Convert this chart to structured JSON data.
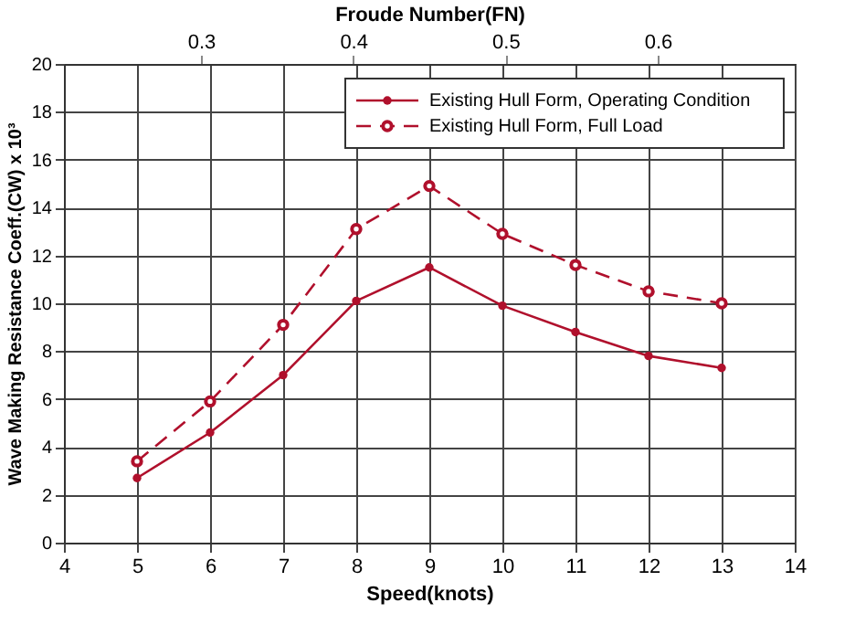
{
  "chart_data": {
    "type": "line",
    "xlabel": "Speed(knots)",
    "ylabel": "Wave Making Resistance Coeff.(CW) x 10³",
    "x2label": "Froude Number(FN)",
    "x": [
      5,
      6,
      7,
      8,
      9,
      10,
      11,
      12,
      13
    ],
    "series": [
      {
        "name": "Existing Hull Form, Operating Condition",
        "color": "#b0102c",
        "values": [
          2.7,
          4.6,
          7.0,
          10.1,
          11.5,
          9.9,
          8.8,
          7.8,
          7.3
        ],
        "marker": "circle",
        "line_style": "solid"
      },
      {
        "name": "Existing Hull Form, Full Load",
        "color": "#b0102c",
        "values": [
          3.4,
          5.9,
          9.1,
          13.1,
          14.9,
          12.9,
          11.6,
          10.5,
          10.0
        ],
        "marker": "circle",
        "line_style": "dashed"
      }
    ],
    "xlim": [
      4,
      14
    ],
    "xticks": [
      4,
      5,
      6,
      7,
      8,
      9,
      10,
      11,
      12,
      13,
      14
    ],
    "ylim": [
      0,
      20
    ],
    "yticks": [
      0,
      2,
      4,
      6,
      8,
      10,
      12,
      14,
      16,
      18,
      20
    ],
    "x2lim": [
      0.21,
      0.69
    ],
    "x2ticks": [
      0.3,
      0.4,
      0.5,
      0.6
    ],
    "grid": true,
    "legend": "top right"
  }
}
